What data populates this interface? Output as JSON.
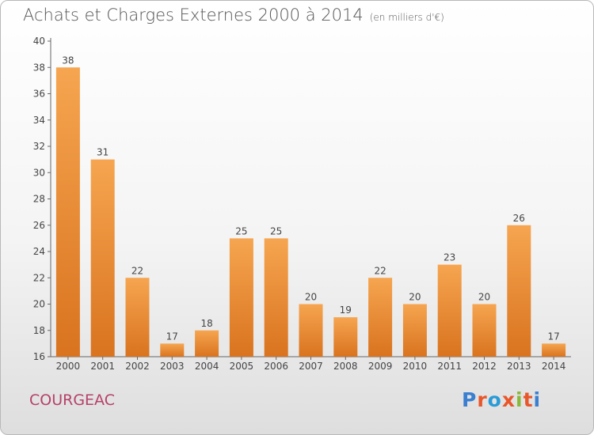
{
  "header": {
    "title": "Achats et Charges Externes 2000 à 2014",
    "unit": "(en milliers d'€)"
  },
  "footer": {
    "city": "COURGEAC",
    "logo": "Proxiti",
    "logo_colors": [
      "#3a7fd0",
      "#e8562a",
      "#2a9bd6",
      "#e8562a",
      "#8ab83a",
      "#e8562a",
      "#3a7fd0"
    ]
  },
  "chart_data": {
    "type": "bar",
    "title": "Achats et Charges Externes 2000 à 2014",
    "subtitle": "(en milliers d'€)",
    "categories": [
      "2000",
      "2001",
      "2002",
      "2003",
      "2004",
      "2005",
      "2006",
      "2007",
      "2008",
      "2009",
      "2010",
      "2011",
      "2012",
      "2013",
      "2014"
    ],
    "values": [
      38,
      31,
      22,
      17,
      18,
      25,
      25,
      20,
      19,
      22,
      20,
      23,
      20,
      26,
      17
    ],
    "ylim": [
      16,
      40
    ],
    "yticks": [
      16,
      18,
      20,
      22,
      24,
      26,
      28,
      30,
      32,
      34,
      36,
      38,
      40
    ],
    "grid": false,
    "bar_color_top": "#f6a550",
    "bar_color_bottom": "#d9731f"
  }
}
